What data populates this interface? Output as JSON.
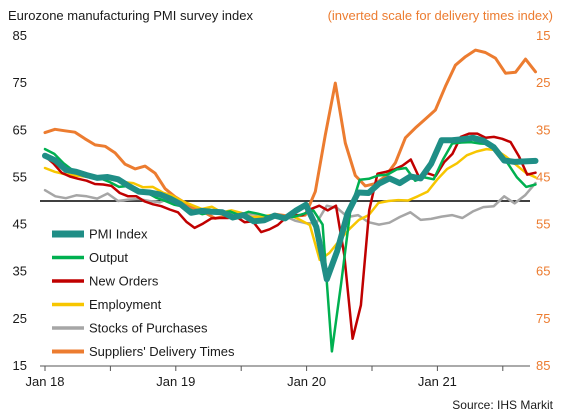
{
  "chart_data": {
    "type": "line",
    "title": "Eurozone manufacturing PMI survey index",
    "right_axis_title": "(inverted scale for delivery times index)",
    "source": "Source: IHS Markit",
    "x_labels": [
      "Jan 18",
      "Jan 19",
      "Jan 20",
      "Jan 21"
    ],
    "x_label_months": [
      0,
      12,
      24,
      36
    ],
    "x_months": 45,
    "y_left": {
      "min": 15,
      "max": 85,
      "ticks": [
        "85",
        "75",
        "65",
        "55",
        "45",
        "35",
        "25",
        "15"
      ],
      "tick_values": [
        85,
        75,
        65,
        55,
        45,
        35,
        25,
        15
      ]
    },
    "y_right": {
      "inverted": true,
      "min": 15,
      "max": 85,
      "ticks": [
        "15",
        "25",
        "35",
        "45",
        "55",
        "65",
        "75",
        "85"
      ],
      "tick_values": [
        15,
        25,
        35,
        45,
        55,
        65,
        75,
        85
      ]
    },
    "reference_line": 50,
    "grid": false,
    "legend_position": "bottom-left",
    "series": [
      {
        "name": "Stocks of Purchases",
        "axis": "left",
        "color": "#a6a6a6",
        "width": 2.5,
        "values": [
          52.3,
          51.0,
          50.6,
          51.2,
          51.0,
          50.5,
          51.6,
          50.0,
          50.3,
          50.4,
          50.0,
          49.7,
          50.7,
          48.9,
          48.5,
          48.2,
          47.8,
          47.8,
          47.1,
          47.3,
          47.2,
          46.8,
          47.0,
          46.8,
          45.8,
          45.3,
          45.3,
          49.0,
          48.5,
          46.6,
          47.0,
          45.5,
          45.0,
          45.4,
          46.6,
          47.6,
          46.0,
          46.2,
          46.7,
          47.0,
          46.4,
          47.8,
          48.7,
          48.9,
          51.0,
          49.5,
          51.2,
          53.8
        ]
      },
      {
        "name": "Suppliers' Delivery Times",
        "axis": "right",
        "color": "#ec7c30",
        "width": 3,
        "values": [
          35.5,
          34.8,
          35.1,
          35.4,
          36.8,
          38.1,
          38.4,
          39.8,
          42.2,
          43.2,
          42.6,
          44.1,
          47.4,
          49.1,
          50.4,
          51.8,
          52.5,
          53.7,
          53.2,
          53.5,
          53.2,
          53.6,
          53.7,
          52.8,
          53.1,
          53.2,
          53.0,
          48.0,
          36.0,
          25.0,
          37.7,
          44.6,
          46.8,
          46.3,
          44.8,
          41.9,
          36.6,
          34.5,
          32.6,
          30.7,
          25.7,
          21.2,
          19.4,
          18.0,
          18.5,
          19.7,
          22.9,
          22.7,
          19.9,
          22.6
        ]
      },
      {
        "name": "Employment",
        "axis": "left",
        "color": "#f7c600",
        "width": 2.5,
        "values": [
          57.0,
          56.2,
          55.7,
          55.4,
          55.2,
          55.0,
          54.7,
          54.5,
          54.0,
          53.8,
          52.9,
          53.0,
          51.8,
          51.1,
          50.0,
          49.1,
          48.3,
          48.8,
          47.6,
          48.0,
          47.5,
          46.6,
          46.7,
          47.0,
          46.6,
          47.0,
          46.0,
          44.9,
          37.5,
          39.0,
          41.6,
          44.0,
          46.0,
          47.0,
          49.6,
          50.0,
          50.2,
          50.1,
          51.0,
          52.0,
          54.6,
          56.8,
          58.0,
          59.7,
          60.5,
          61.0,
          60.8,
          59.4,
          57.7,
          56.0,
          55.0
        ]
      },
      {
        "name": "New Orders",
        "axis": "left",
        "color": "#c00000",
        "width": 2.5,
        "values": [
          59.5,
          58.0,
          56.0,
          55.2,
          54.7,
          54.3,
          53.6,
          53.5,
          53.2,
          51.7,
          51.0,
          51.0,
          49.9,
          49.3,
          48.9,
          48.2,
          47.6,
          45.6,
          44.3,
          45.2,
          46.3,
          46.4,
          46.4,
          46.7,
          45.5,
          45.7,
          43.4,
          44.0,
          44.9,
          46.5,
          47.0,
          47.0,
          48.3,
          49.0,
          48.0,
          49.0,
          38.5,
          20.8,
          27.9,
          48.0,
          55.8,
          56.2,
          56.7,
          57.5,
          58.8,
          55.0,
          55.9,
          55.3,
          58.2,
          60.0,
          63.6,
          64.3,
          64.3,
          63.4,
          63.6,
          63.2,
          62.5,
          59.5,
          55.6,
          56.0
        ]
      },
      {
        "name": "Output",
        "axis": "left",
        "color": "#00b050",
        "width": 2.5,
        "values": [
          61.0,
          60.0,
          58.0,
          56.5,
          56.1,
          55.4,
          54.8,
          54.0,
          53.0,
          53.2,
          52.0,
          51.8,
          50.7,
          50.0,
          49.2,
          48.8,
          47.9,
          47.2,
          47.6,
          47.5,
          47.8,
          47.0,
          47.7,
          47.3,
          46.8,
          46.6,
          46.5,
          46.7,
          47.3,
          48.0,
          45.0,
          18.1,
          32.6,
          48.1,
          54.5,
          54.7,
          55.4,
          55.6,
          56.7,
          57.0,
          54.3,
          55.0,
          54.6,
          58.8,
          62.2,
          62.4,
          62.5,
          62.2,
          62.1,
          60.2,
          58.0,
          55.0,
          53.0,
          53.5
        ]
      },
      {
        "name": "PMI Index",
        "axis": "left",
        "color": "#1f8e86",
        "width": 6,
        "values": [
          59.6,
          58.6,
          56.6,
          56.2,
          55.5,
          54.9,
          55.1,
          54.6,
          53.2,
          52.0,
          51.8,
          51.4,
          50.5,
          49.3,
          47.5,
          47.9,
          47.7,
          47.6,
          46.5,
          47.0,
          45.7,
          45.9,
          46.9,
          46.3,
          47.9,
          49.2,
          44.5,
          33.4,
          39.4,
          47.4,
          51.8,
          51.7,
          53.7,
          54.8,
          53.8,
          55.2,
          54.8,
          57.9,
          62.9,
          62.9,
          63.1,
          63.4,
          62.8,
          61.4,
          58.6,
          58.3,
          58.4,
          58.5
        ]
      }
    ]
  }
}
